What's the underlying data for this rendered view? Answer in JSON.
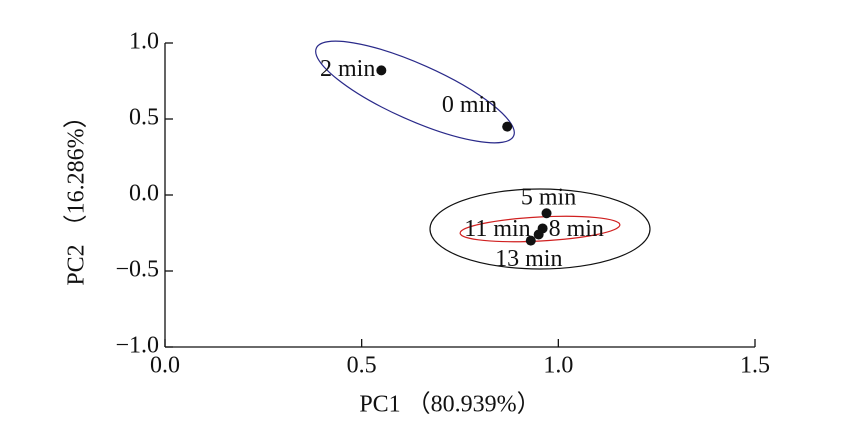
{
  "chart_data": {
    "type": "scatter",
    "x_label": "PC1 （80.939%）",
    "y_label": "PC2 （16.286%）",
    "point_labels": [
      "2 min",
      "0 min",
      "5 min",
      "8 min",
      "11 min",
      "13 min"
    ],
    "x": [
      0.55,
      0.87,
      0.97,
      0.96,
      0.95,
      0.93
    ],
    "values": [
      0.82,
      0.45,
      -0.12,
      -0.22,
      -0.26,
      -0.3
    ],
    "color": "#111111",
    "xlim": [
      0,
      1.5
    ],
    "ylim": [
      -1,
      1
    ],
    "xticks": [
      {
        "value": 0,
        "label": "0.0"
      },
      {
        "value": 0.5,
        "label": "0.5"
      },
      {
        "value": 1,
        "label": "1.0"
      },
      {
        "value": 1.5,
        "label": "1.5"
      }
    ],
    "yticks": [
      {
        "value": -1,
        "label": "−1.0"
      },
      {
        "value": -0.5,
        "label": "−0.5"
      },
      {
        "value": 0,
        "label": "0.0"
      },
      {
        "value": 0.5,
        "label": "0.5"
      },
      {
        "value": 1,
        "label": "1.0"
      }
    ]
  }
}
